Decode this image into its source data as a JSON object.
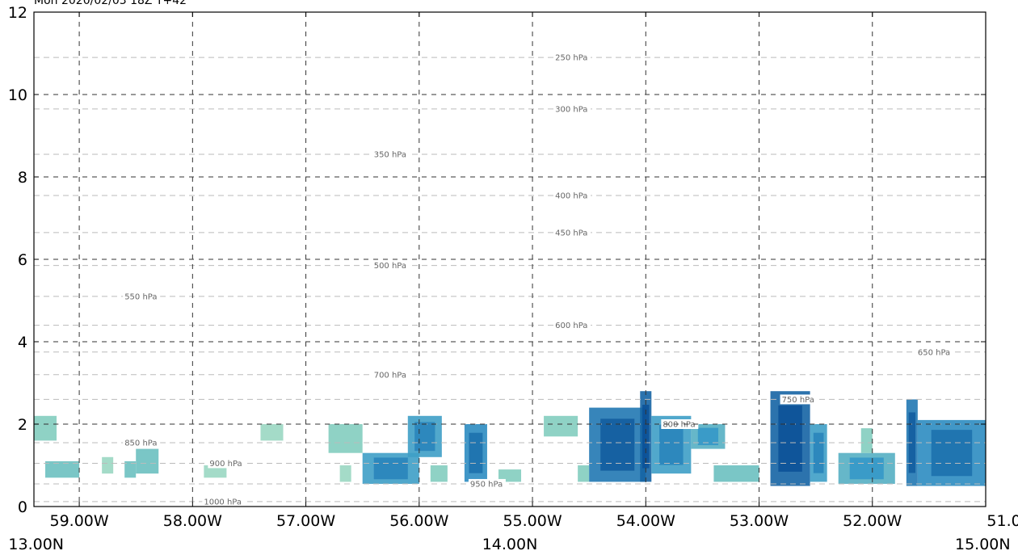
{
  "title": "Mon 2020/02/03 18Z T+42",
  "chart_data": {
    "type": "heatmap",
    "description_type": "vertical cross-section",
    "ylim": [
      0,
      12
    ],
    "xlim": [
      -59.4,
      -51.0
    ],
    "y_ticks": [
      0,
      2,
      4,
      6,
      8,
      10,
      12
    ],
    "lon_ticks": [
      {
        "value": -59.0,
        "label": "59.00W"
      },
      {
        "value": -58.0,
        "label": "58.00W"
      },
      {
        "value": -57.0,
        "label": "57.00W"
      },
      {
        "value": -56.0,
        "label": "56.00W"
      },
      {
        "value": -55.0,
        "label": "55.00W"
      },
      {
        "value": -54.0,
        "label": "54.00W"
      },
      {
        "value": -53.0,
        "label": "53.00W"
      },
      {
        "value": -52.0,
        "label": "52.00W"
      },
      {
        "value": -51.0,
        "label": "51.00W"
      }
    ],
    "lat_labels": [
      {
        "value": -59.4,
        "label": "13.00N"
      },
      {
        "value": -55.2,
        "label": "14.00N"
      },
      {
        "value": -51.0,
        "label": "15.00N"
      }
    ],
    "grid": true,
    "pressure_levels": [
      {
        "label": "250 hPa",
        "height": 10.9,
        "lon": -54.8
      },
      {
        "label": "300 hPa",
        "height": 9.65,
        "lon": -54.8
      },
      {
        "label": "350 hPa",
        "height": 8.55,
        "lon": -56.4
      },
      {
        "label": "400 hPa",
        "height": 7.55,
        "lon": -54.8
      },
      {
        "label": "450 hPa",
        "height": 6.65,
        "lon": -54.8
      },
      {
        "label": "500 hPa",
        "height": 5.85,
        "lon": -56.4
      },
      {
        "label": "550 hPa",
        "height": 5.1,
        "lon": -58.6
      },
      {
        "label": "600 hPa",
        "height": 4.4,
        "lon": -54.8
      },
      {
        "label": "650 hPa",
        "height": 3.75,
        "lon": -51.6
      },
      {
        "label": "700 hPa",
        "height": 3.2,
        "lon": -56.4
      },
      {
        "label": "750 hPa",
        "height": 2.6,
        "lon": -52.8
      },
      {
        "label": "800 hPa",
        "height": 2.0,
        "lon": -53.85
      },
      {
        "label": "850 hPa",
        "height": 1.55,
        "lon": -58.6
      },
      {
        "label": "900 hPa",
        "height": 1.05,
        "lon": -57.85
      },
      {
        "label": "950 hPa",
        "height": 0.55,
        "lon": -55.55
      },
      {
        "label": "1000 hPa",
        "height": 0.12,
        "lon": -57.9
      }
    ],
    "blobs": [
      {
        "x0": -59.4,
        "x1": -59.2,
        "y0": 1.6,
        "y1": 2.2,
        "v": 0.3
      },
      {
        "x0": -59.3,
        "x1": -59.0,
        "y0": 0.7,
        "y1": 1.1,
        "v": 0.4
      },
      {
        "x0": -58.8,
        "x1": -58.7,
        "y0": 0.8,
        "y1": 1.2,
        "v": 0.2
      },
      {
        "x0": -58.6,
        "x1": -58.5,
        "y0": 0.7,
        "y1": 1.1,
        "v": 0.4
      },
      {
        "x0": -58.5,
        "x1": -58.3,
        "y0": 0.8,
        "y1": 1.4,
        "v": 0.4
      },
      {
        "x0": -57.9,
        "x1": -57.7,
        "y0": 0.7,
        "y1": 1.0,
        "v": 0.2
      },
      {
        "x0": -57.4,
        "x1": -57.2,
        "y0": 1.6,
        "y1": 2.0,
        "v": 0.2
      },
      {
        "x0": -56.8,
        "x1": -56.5,
        "y0": 1.3,
        "y1": 2.0,
        "v": 0.3
      },
      {
        "x0": -56.7,
        "x1": -56.6,
        "y0": 0.6,
        "y1": 1.0,
        "v": 0.2
      },
      {
        "x0": -56.5,
        "x1": -56.0,
        "y0": 0.55,
        "y1": 1.3,
        "v": 0.6
      },
      {
        "x0": -56.1,
        "x1": -55.8,
        "y0": 1.2,
        "y1": 2.2,
        "v": 0.6
      },
      {
        "x0": -55.9,
        "x1": -55.75,
        "y0": 0.6,
        "y1": 1.0,
        "v": 0.3
      },
      {
        "x0": -55.6,
        "x1": -55.4,
        "y0": 0.6,
        "y1": 2.0,
        "v": 0.7
      },
      {
        "x0": -55.3,
        "x1": -55.1,
        "y0": 0.6,
        "y1": 0.9,
        "v": 0.3
      },
      {
        "x0": -54.9,
        "x1": -54.6,
        "y0": 1.7,
        "y1": 2.2,
        "v": 0.3
      },
      {
        "x0": -54.6,
        "x1": -54.5,
        "y0": 0.6,
        "y1": 1.0,
        "v": 0.3
      },
      {
        "x0": -54.5,
        "x1": -54.0,
        "y0": 0.6,
        "y1": 2.4,
        "v": 0.8
      },
      {
        "x0": -54.05,
        "x1": -53.95,
        "y0": 0.6,
        "y1": 2.8,
        "v": 0.9
      },
      {
        "x0": -53.95,
        "x1": -53.6,
        "y0": 0.8,
        "y1": 2.2,
        "v": 0.6
      },
      {
        "x0": -53.6,
        "x1": -53.3,
        "y0": 1.4,
        "y1": 2.0,
        "v": 0.5
      },
      {
        "x0": -53.4,
        "x1": -53.0,
        "y0": 0.6,
        "y1": 1.0,
        "v": 0.4
      },
      {
        "x0": -52.9,
        "x1": -52.55,
        "y0": 0.5,
        "y1": 2.8,
        "v": 0.9
      },
      {
        "x0": -52.55,
        "x1": -52.4,
        "y0": 0.6,
        "y1": 2.0,
        "v": 0.6
      },
      {
        "x0": -52.3,
        "x1": -51.8,
        "y0": 0.55,
        "y1": 1.3,
        "v": 0.5
      },
      {
        "x0": -52.1,
        "x1": -52.0,
        "y0": 1.3,
        "y1": 1.9,
        "v": 0.3
      },
      {
        "x0": -51.7,
        "x1": -51.6,
        "y0": 0.5,
        "y1": 2.6,
        "v": 0.8
      },
      {
        "x0": -51.6,
        "x1": -51.0,
        "y0": 0.5,
        "y1": 2.1,
        "v": 0.7
      }
    ]
  }
}
